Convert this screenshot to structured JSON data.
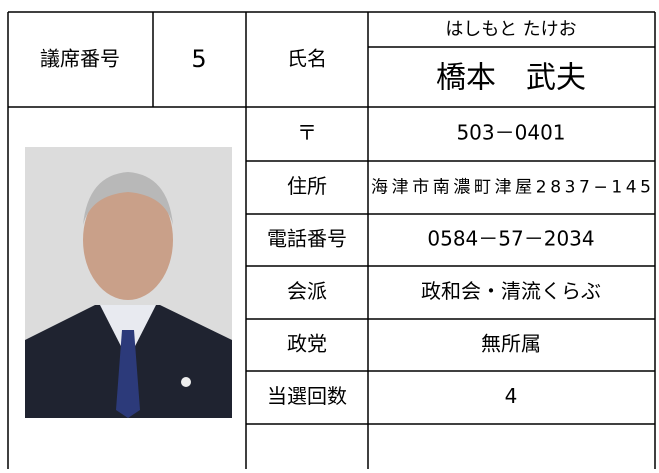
{
  "header": {
    "seat_label": "議席番号",
    "seat": "5",
    "name_label": "氏名",
    "furigana": "はしもと たけお",
    "name": "橋本　武夫"
  },
  "rows": [
    [
      "〒",
      "503－0401"
    ],
    [
      "住所",
      "海津市南濃町津屋2837−145"
    ],
    [
      "電話番号",
      "0584－57－2034"
    ],
    [
      "会派",
      "政和会・清流くらぶ"
    ],
    [
      "政党",
      "無所属"
    ],
    [
      "当選回数",
      "4"
    ]
  ]
}
